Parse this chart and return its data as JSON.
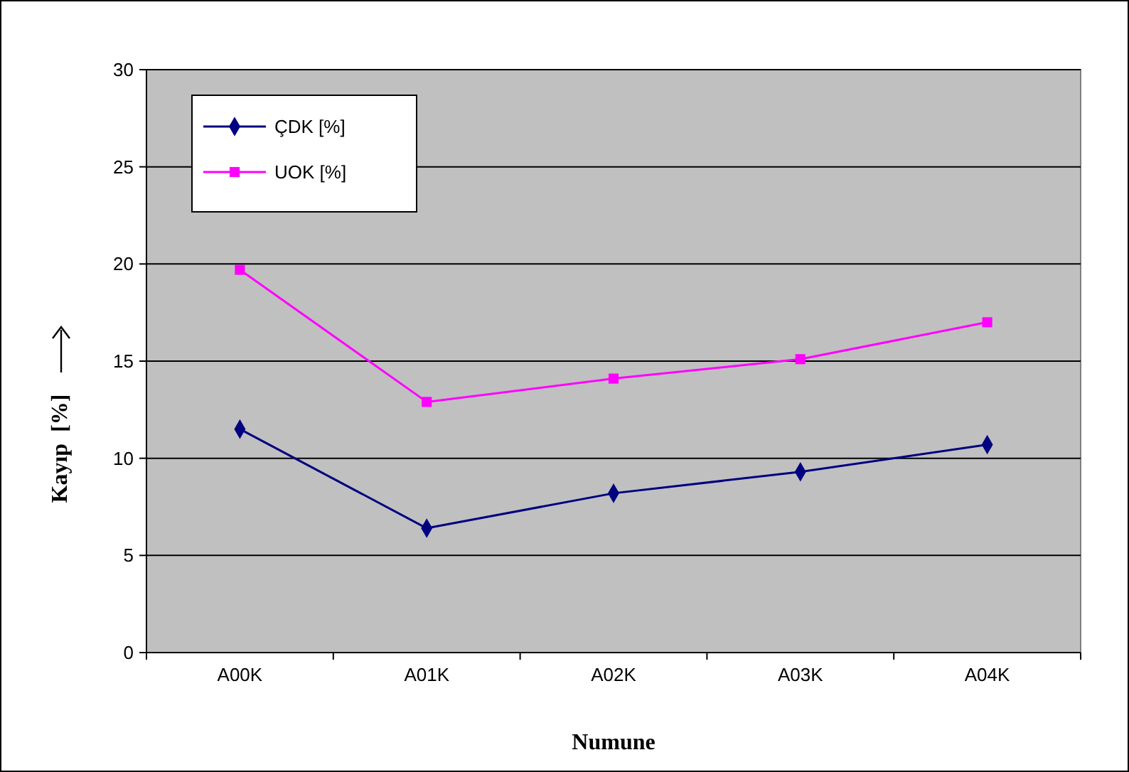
{
  "chart_data": {
    "type": "line",
    "xlabel": "Numune",
    "ylabel": "Kayıp  [%]",
    "categories": [
      "A00K",
      "A01K",
      "A02K",
      "A03K",
      "A04K"
    ],
    "series": [
      {
        "name": "ÇDK [%]",
        "color": "#000080",
        "marker": "diamond",
        "values": [
          11.5,
          6.4,
          8.2,
          9.3,
          10.7
        ]
      },
      {
        "name": "UOK [%]",
        "color": "#ff00ff",
        "marker": "square",
        "values": [
          19.7,
          12.9,
          14.1,
          15.1,
          17.0
        ]
      }
    ],
    "ylim": [
      0,
      30
    ],
    "yticks": [
      0,
      5,
      10,
      15,
      20,
      25,
      30
    ],
    "grid": "y",
    "legend": "top left"
  }
}
